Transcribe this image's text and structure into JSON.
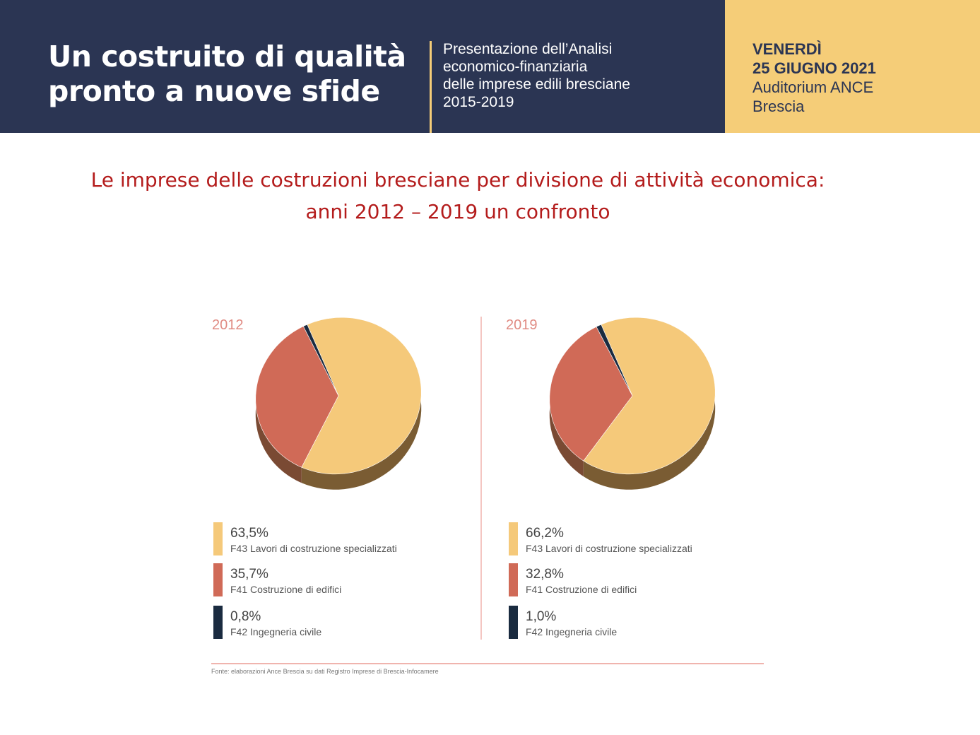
{
  "header": {
    "title_lines": [
      "Un costruito di qualità",
      "pronto a nuove sfide"
    ],
    "subtitle_lines": [
      "Presentazione dell’Analisi",
      "economico-finanziaria",
      "delle imprese edili bresciane",
      "2015-2019"
    ],
    "event": {
      "day": "VENERDÌ",
      "date": "25 GIUGNO 2021",
      "venue": "Auditorium ANCE",
      "city": "Brescia"
    }
  },
  "slide_title_lines": [
    "Le imprese delle costruzioni bresciane per divisione di attività economica:",
    "anni 2012 – 2019 un confronto"
  ],
  "colors": {
    "f43": "#f5c97a",
    "f43_side": "#7a5c33",
    "f41": "#d06a57",
    "f41_side": "#7a4a33",
    "f42": "#1a2b40",
    "year": "#e08b83",
    "divider": "#f0b4ae"
  },
  "chart_data": [
    {
      "type": "pie",
      "title": "2012",
      "labels": [
        "F43 Lavori di costruzione specializzati",
        "F41 Costruzione di edifici",
        "F42 Ingegneria civile"
      ],
      "values": [
        63.5,
        35.7,
        0.8
      ],
      "value_labels": [
        "63,5%",
        "35,7%",
        "0,8%"
      ]
    },
    {
      "type": "pie",
      "title": "2019",
      "labels": [
        "F43 Lavori di costruzione specializzati",
        "F41 Costruzione di edifici",
        "F42 Ingegneria civile"
      ],
      "values": [
        66.2,
        32.8,
        1.0
      ],
      "value_labels": [
        "66,2%",
        "32,8%",
        "1,0%"
      ]
    }
  ],
  "source": "Fonte: elaborazioni Ance Brescia su dati Registro Imprese di Brescia-Infocamere"
}
